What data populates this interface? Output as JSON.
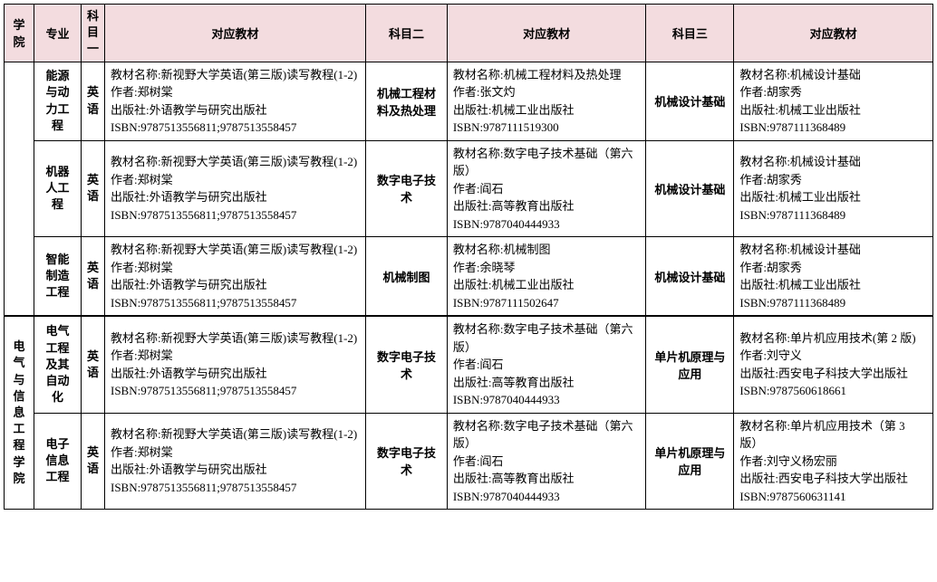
{
  "header": {
    "college": "学院",
    "major": "专业",
    "subject1": "科目一",
    "book1": "对应教材",
    "subject2": "科目二",
    "book2": "对应教材",
    "subject3": "科目三",
    "book3": "对应教材"
  },
  "group1": {
    "college_name_empty": "",
    "rows": [
      {
        "major": "能源与动力工程",
        "sub1": "英语",
        "book1": {
          "name": "新视野大学英语(第三版)读写教程(1-2)",
          "author": "郑树棠",
          "press": "外语教学与研究出版社",
          "isbn": "9787513556811;9787513558457"
        },
        "sub2": "机械工程材料及热处理",
        "book2": {
          "name": "机械工程材料及热处理",
          "author": "张文灼",
          "press": "机械工业出版社",
          "isbn": "9787111519300"
        },
        "sub3": "机械设计基础",
        "book3": {
          "name": "机械设计基础",
          "author": "胡家秀",
          "press": "机械工业出版社",
          "isbn": "9787111368489"
        }
      },
      {
        "major": "机器人工程",
        "sub1": "英语",
        "book1": {
          "name": "新视野大学英语(第三版)读写教程(1-2)",
          "author": "郑树棠",
          "press": "外语教学与研究出版社",
          "isbn": "9787513556811;9787513558457"
        },
        "sub2": "数字电子技术",
        "book2": {
          "name": "数字电子技术基础（第六版）",
          "author": "阎石",
          "press": "高等教育出版社",
          "isbn": "9787040444933"
        },
        "sub3": "机械设计基础",
        "book3": {
          "name": "机械设计基础",
          "author": "胡家秀",
          "press": "机械工业出版社",
          "isbn": "9787111368489"
        }
      },
      {
        "major": "智能制造工程",
        "sub1": "英语",
        "book1": {
          "name": "新视野大学英语(第三版)读写教程(1-2)",
          "author": "郑树棠",
          "press": "外语教学与研究出版社",
          "isbn": "9787513556811;9787513558457"
        },
        "sub2": "机械制图",
        "book2": {
          "name": "机械制图",
          "author": "余晓琴",
          "press": "机械工业出版社",
          "isbn": "9787111502647"
        },
        "sub3": "机械设计基础",
        "book3": {
          "name": "机械设计基础",
          "author": "胡家秀",
          "press": "机械工业出版社",
          "isbn": "9787111368489"
        }
      }
    ]
  },
  "group2": {
    "college_name": "电气与信息工程学院",
    "rows": [
      {
        "major": "电气工程及其自动化",
        "sub1": "英语",
        "book1": {
          "name": "新视野大学英语(第三版)读写教程(1-2)",
          "author": "郑树棠",
          "press": "外语教学与研究出版社",
          "isbn": "9787513556811;9787513558457"
        },
        "sub2": "数字电子技术",
        "book2": {
          "name": "数字电子技术基础（第六版）",
          "author": "阎石",
          "press": "高等教育出版社",
          "isbn": "9787040444933"
        },
        "sub3": "单片机原理与应用",
        "book3": {
          "name": "单片机应用技术(第 2 版)",
          "author": "刘守义",
          "press": "西安电子科技大学出版社",
          "isbn": "9787560618661"
        }
      },
      {
        "major": "电子信息工程",
        "sub1": "英语",
        "book1": {
          "name": "新视野大学英语(第三版)读写教程(1-2)",
          "author": "郑树棠",
          "press": "外语教学与研究出版社",
          "isbn": "9787513556811;9787513558457"
        },
        "sub2": "数字电子技术",
        "book2": {
          "name": "数字电子技术基础（第六版）",
          "author": "阎石",
          "press": "高等教育出版社",
          "isbn": "9787040444933"
        },
        "sub3": "单片机原理与应用",
        "book3": {
          "name": "单片机应用技术（第 3 版）",
          "author": "刘守义杨宏丽",
          "press": "西安电子科技大学出版社",
          "isbn": "9787560631141"
        }
      }
    ]
  },
  "labels": {
    "name_prefix": "教材名称:",
    "author_prefix": "作者:",
    "press_prefix": "出版社:",
    "isbn_prefix": "ISBN:"
  },
  "style": {
    "header_bg": "#f3dcdf",
    "border_color": "#000000",
    "font_family": "SimSun",
    "font_size_pt": 10
  }
}
